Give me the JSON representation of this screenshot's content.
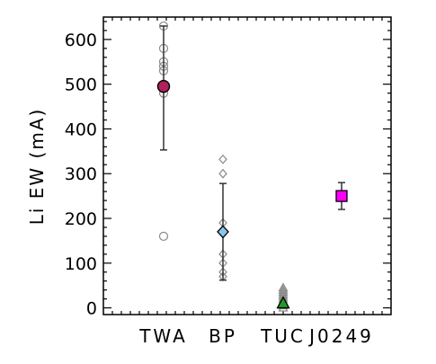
{
  "chart_data": {
    "type": "scatter",
    "title": "",
    "xlabel": "",
    "ylabel": "Li EW (mA)",
    "ylim": [
      -15,
      650
    ],
    "yticks": [
      0,
      100,
      200,
      300,
      400,
      500,
      600
    ],
    "categories": [
      "TWA",
      "BP",
      "TUC",
      "J0249"
    ],
    "groups": [
      {
        "category": "TWA",
        "individual": [
          630,
          580,
          550,
          540,
          530,
          500,
          480,
          160
        ],
        "mean": 495,
        "error_low": 353,
        "error_high": 630,
        "marker": "circle",
        "color": "#b0205a"
      },
      {
        "category": "BP",
        "individual": [
          332,
          300,
          190,
          170,
          120,
          100,
          80,
          70
        ],
        "mean": 170,
        "error_low": 62,
        "error_high": 278,
        "marker": "diamond",
        "color": "#89c6ea"
      },
      {
        "category": "TUC",
        "individual": [
          45,
          40,
          35,
          30,
          25,
          20,
          15,
          10,
          5,
          0
        ],
        "mean": 10,
        "error_low": 0,
        "error_high": 0,
        "marker": "triangle",
        "color": "#1f9a2a"
      },
      {
        "category": "J0249",
        "individual": [],
        "mean": 250,
        "error_low": 220,
        "error_high": 280,
        "marker": "square",
        "color": "#ff00ff"
      }
    ]
  }
}
